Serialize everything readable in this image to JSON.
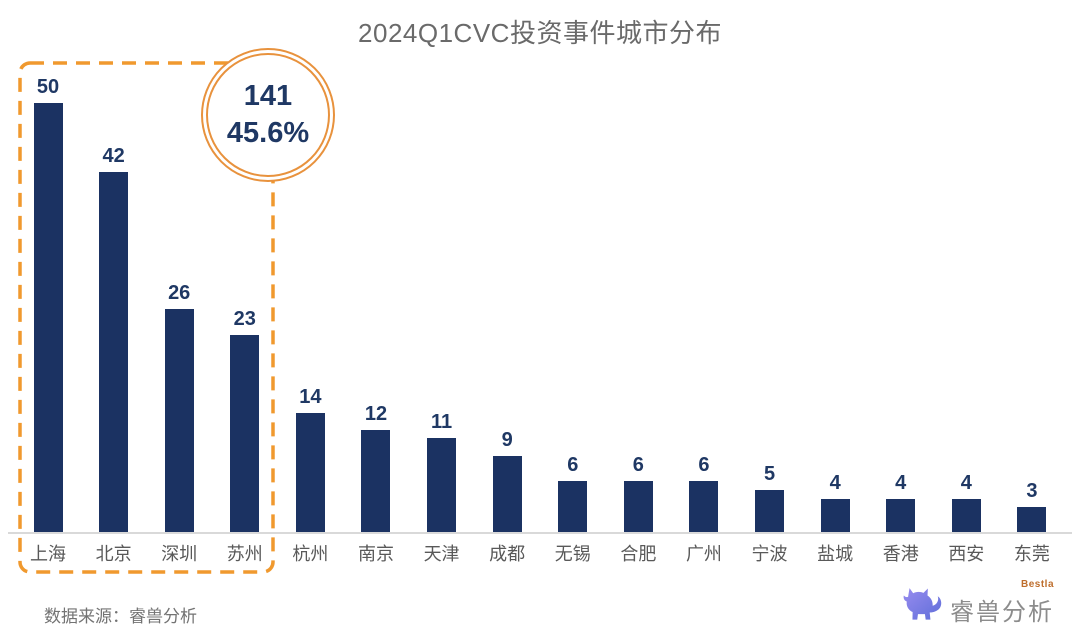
{
  "title": "2024Q1CVC投资事件城市分布",
  "chart_data": {
    "type": "bar",
    "title": "2024Q1CVC投资事件城市分布",
    "categories": [
      "上海",
      "北京",
      "深圳",
      "苏州",
      "杭州",
      "南京",
      "天津",
      "成都",
      "无锡",
      "合肥",
      "广州",
      "宁波",
      "盐城",
      "香港",
      "西安",
      "东莞"
    ],
    "values": [
      50,
      42,
      26,
      23,
      14,
      12,
      11,
      9,
      6,
      6,
      6,
      5,
      4,
      4,
      4,
      3
    ],
    "xlabel": "",
    "ylabel": "",
    "ylim": [
      0,
      50
    ],
    "grid": false,
    "legend": "none",
    "value_labels": true,
    "annotation": {
      "highlighted_categories": [
        "上海",
        "北京",
        "深圳",
        "苏州"
      ],
      "total_label": "141",
      "share_label": "45.6%"
    }
  },
  "footer": {
    "source": "数据来源：睿兽分析"
  },
  "logo": {
    "name": "睿兽分析",
    "tagline": "Bestla"
  },
  "colors": {
    "bar": "#1B3262",
    "value_label": "#1F3864",
    "highlight_orange": "#F0992E",
    "badge_ring": "#E8923D",
    "title_gray": "#6A6A6A",
    "axis_gray": "#D9D9D9",
    "label_gray": "#595959",
    "source_gray": "#737373",
    "logo_gray": "#8C8C8C",
    "tagline_orange": "#BE6E2D",
    "logo_purple_light": "#988CEF",
    "logo_purple_dark": "#5F6ED9"
  }
}
